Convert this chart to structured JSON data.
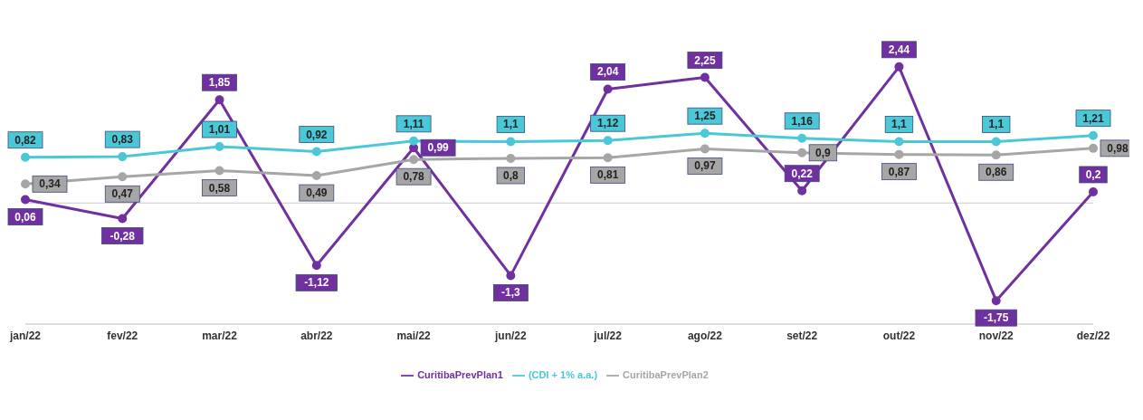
{
  "chart_data": {
    "type": "line",
    "categories": [
      "jan/22",
      "fev/22",
      "mar/22",
      "abr/22",
      "mai/22",
      "jun/22",
      "jul/22",
      "ago/22",
      "set/22",
      "out/22",
      "nov/22",
      "dez/22"
    ],
    "series": [
      {
        "name": "CuritibaPrevPlan1",
        "color": "#7030a0",
        "values": [
          0.06,
          -0.28,
          1.85,
          -1.12,
          0.99,
          -1.3,
          2.04,
          2.25,
          0.22,
          2.44,
          -1.75,
          0.2
        ],
        "value_labels": [
          "0,06",
          "-0,28",
          "1,85",
          "-1,12",
          "0,99",
          "-1,3",
          "2,04",
          "2,25",
          "0,22",
          "2,44",
          "-1,75",
          "0,2"
        ]
      },
      {
        "name": "(CDI + 1% a.a.)",
        "color": "#4bc8d8",
        "values": [
          0.82,
          0.83,
          1.01,
          0.92,
          1.11,
          1.1,
          1.12,
          1.25,
          1.16,
          1.1,
          1.1,
          1.21
        ],
        "value_labels": [
          "0,82",
          "0,83",
          "1,01",
          "0,92",
          "1,11",
          "1,1",
          "1,12",
          "1,25",
          "1,16",
          "1,1",
          "1,1",
          "1,21"
        ]
      },
      {
        "name": "CuritibaPrevPlan2",
        "color": "#a6a6a6",
        "values": [
          0.34,
          0.47,
          0.58,
          0.49,
          0.78,
          0.8,
          0.81,
          0.97,
          0.9,
          0.87,
          0.86,
          0.98
        ],
        "value_labels": [
          "0,34",
          "0,47",
          "0,58",
          "0,49",
          "0,78",
          "0,8",
          "0,81",
          "0,97",
          "0,9",
          "0,87",
          "0,86",
          "0,98"
        ]
      }
    ],
    "legend": "bottom",
    "marker": "circle",
    "line_style": "solid",
    "grid": false
  }
}
